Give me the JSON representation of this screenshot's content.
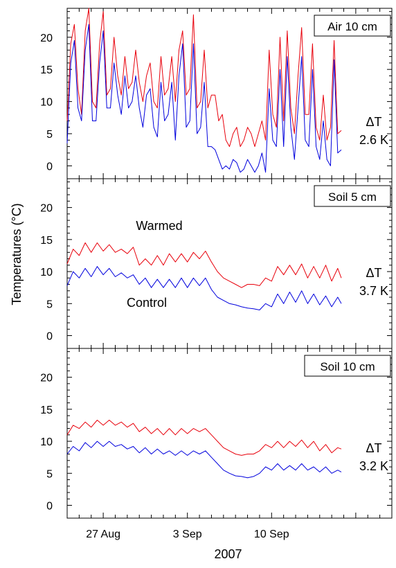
{
  "chart_data": [
    {
      "type": "line",
      "label": "Air 10 cm",
      "delta_label": "ΔT",
      "delta_value": "2.6 K",
      "ylim": [
        -2,
        24.5
      ],
      "yticks": [
        0,
        5,
        10,
        15,
        20
      ],
      "series": [
        {
          "key": "warmed",
          "color": "#e8000b",
          "x": [
            0,
            0.3,
            0.6,
            0.9,
            1.2,
            1.5,
            1.8,
            2.1,
            2.4,
            2.7,
            3.0,
            3.3,
            3.6,
            3.9,
            4.2,
            4.5,
            4.8,
            5.1,
            5.4,
            5.7,
            6.0,
            6.3,
            6.6,
            6.9,
            7.2,
            7.5,
            7.8,
            8.1,
            8.4,
            8.7,
            9.0,
            9.3,
            9.6,
            9.9,
            10.2,
            10.5,
            10.8,
            11.1,
            11.4,
            11.7,
            12.0,
            12.3,
            12.6,
            12.9,
            13.2,
            13.5,
            13.8,
            14.1,
            14.4,
            14.7,
            15.0,
            15.3,
            15.6,
            15.9,
            16.2,
            16.5,
            16.8,
            17.1,
            17.4,
            17.7,
            18.0,
            18.3,
            18.6,
            18.9,
            19.2,
            19.5,
            19.8,
            20.1,
            20.4,
            20.7,
            21.0,
            21.3,
            21.6,
            21.9,
            22.2,
            22.5,
            22.8
          ],
          "y": [
            7,
            19,
            22,
            12,
            8,
            21,
            24.5,
            10,
            9,
            19,
            24,
            11,
            12,
            20,
            14,
            11,
            17,
            12,
            13,
            18,
            13,
            10,
            14,
            16,
            10,
            9,
            17,
            11,
            12,
            17,
            10,
            18,
            21,
            11,
            12,
            23.5,
            9,
            10,
            18,
            9,
            11,
            11,
            7,
            8,
            4,
            3,
            5,
            6,
            3,
            4,
            6,
            5,
            3,
            5,
            7,
            4,
            18,
            8,
            6,
            20,
            7,
            21,
            9,
            5,
            14,
            21.5,
            8,
            8,
            19,
            6,
            4,
            11,
            4,
            6,
            19.5,
            5,
            5.5
          ]
        },
        {
          "key": "control",
          "color": "#0000dd",
          "x": [
            0,
            0.3,
            0.6,
            0.9,
            1.2,
            1.5,
            1.8,
            2.1,
            2.4,
            2.7,
            3.0,
            3.3,
            3.6,
            3.9,
            4.2,
            4.5,
            4.8,
            5.1,
            5.4,
            5.7,
            6.0,
            6.3,
            6.6,
            6.9,
            7.2,
            7.5,
            7.8,
            8.1,
            8.4,
            8.7,
            9.0,
            9.3,
            9.6,
            9.9,
            10.2,
            10.5,
            10.8,
            11.1,
            11.4,
            11.7,
            12.0,
            12.3,
            12.6,
            12.9,
            13.2,
            13.5,
            13.8,
            14.1,
            14.4,
            14.7,
            15.0,
            15.3,
            15.6,
            15.9,
            16.2,
            16.5,
            16.8,
            17.1,
            17.4,
            17.7,
            18.0,
            18.3,
            18.6,
            18.9,
            19.2,
            19.5,
            19.8,
            20.1,
            20.4,
            20.7,
            21.0,
            21.3,
            21.6,
            21.9,
            22.2,
            22.5,
            22.8
          ],
          "y": [
            3.5,
            16,
            19.5,
            9,
            7,
            18,
            22,
            7,
            7,
            16,
            21,
            9,
            9,
            16,
            11,
            8,
            14,
            9,
            10,
            14,
            9,
            6,
            11,
            12,
            6,
            4.5,
            13,
            7,
            8,
            13,
            4,
            14,
            19,
            6,
            7,
            19,
            5,
            6,
            13,
            3,
            3,
            2.5,
            1,
            -0.5,
            0,
            -0.5,
            1,
            0.5,
            -1,
            -0.5,
            1,
            0,
            -1,
            0,
            2,
            -1,
            12,
            4,
            3,
            15,
            3,
            17,
            6,
            1,
            9,
            17,
            4,
            3,
            15,
            3,
            1,
            7,
            1,
            0,
            16.5,
            2,
            2.5
          ]
        }
      ]
    },
    {
      "type": "line",
      "label": "Soil 5 cm",
      "delta_label": "ΔT",
      "delta_value": "3.7 K",
      "warmed_label": "Warmed",
      "control_label": "Control",
      "ylim": [
        -2,
        24.5
      ],
      "yticks": [
        0,
        5,
        10,
        15,
        20
      ],
      "series": [
        {
          "key": "warmed",
          "color": "#e8000b",
          "x": [
            0,
            0.5,
            1,
            1.5,
            2,
            2.5,
            3,
            3.5,
            4,
            4.5,
            5,
            5.5,
            6,
            6.5,
            7,
            7.5,
            8,
            8.5,
            9,
            9.5,
            10,
            10.5,
            11,
            11.5,
            12,
            12.5,
            13,
            13.5,
            14,
            14.5,
            15,
            15.5,
            16,
            16.5,
            17,
            17.5,
            18,
            18.5,
            19,
            19.5,
            20,
            20.5,
            21,
            21.5,
            22,
            22.5,
            22.8
          ],
          "y": [
            11.2,
            13.5,
            12.5,
            14.5,
            13,
            14.5,
            13.2,
            14.2,
            13,
            13.5,
            12.8,
            13.8,
            11,
            12,
            11,
            12.5,
            11,
            12.8,
            11.5,
            12.8,
            11.5,
            13,
            12,
            13.2,
            11.5,
            10,
            9,
            8.5,
            8,
            7.5,
            8,
            8,
            7.8,
            9,
            8.5,
            10.8,
            9.5,
            11,
            9.5,
            11.2,
            9,
            10.8,
            9,
            11,
            8.5,
            10.5,
            9
          ]
        },
        {
          "key": "control",
          "color": "#0000dd",
          "x": [
            0,
            0.5,
            1,
            1.5,
            2,
            2.5,
            3,
            3.5,
            4,
            4.5,
            5,
            5.5,
            6,
            6.5,
            7,
            7.5,
            8,
            8.5,
            9,
            9.5,
            10,
            10.5,
            11,
            11.5,
            12,
            12.5,
            13,
            13.5,
            14,
            14.5,
            15,
            15.5,
            16,
            16.5,
            17,
            17.5,
            18,
            18.5,
            19,
            19.5,
            20,
            20.5,
            21,
            21.5,
            22,
            22.5,
            22.8
          ],
          "y": [
            7.8,
            10,
            9,
            10.5,
            9.2,
            10.8,
            9.5,
            10.5,
            9.2,
            9.8,
            9,
            9.5,
            8,
            9,
            7.5,
            8.8,
            7.5,
            8.8,
            7.5,
            9,
            7.5,
            9,
            7.8,
            9,
            7.2,
            6,
            5.5,
            5,
            4.8,
            4.5,
            4.3,
            4.2,
            4,
            5,
            4.5,
            6.5,
            5,
            6.8,
            5.2,
            7,
            5,
            6.5,
            4.8,
            6.2,
            4.5,
            6,
            5
          ]
        }
      ]
    },
    {
      "type": "line",
      "label": "Soil 10 cm",
      "delta_label": "ΔT",
      "delta_value": "3.2 K",
      "ylim": [
        -2,
        24.5
      ],
      "yticks": [
        0,
        5,
        10,
        15,
        20
      ],
      "xticks": [
        {
          "pos": 3,
          "label": "27 Aug"
        },
        {
          "pos": 10,
          "label": "3 Sep"
        },
        {
          "pos": 17,
          "label": "10 Sep"
        }
      ],
      "xlim": [
        0,
        27
      ],
      "xlabel": "2007",
      "series": [
        {
          "key": "warmed",
          "color": "#e8000b",
          "x": [
            0,
            0.5,
            1,
            1.5,
            2,
            2.5,
            3,
            3.5,
            4,
            4.5,
            5,
            5.5,
            6,
            6.5,
            7,
            7.5,
            8,
            8.5,
            9,
            9.5,
            10,
            10.5,
            11,
            11.5,
            12,
            12.5,
            13,
            13.5,
            14,
            14.5,
            15,
            15.5,
            16,
            16.5,
            17,
            17.5,
            18,
            18.5,
            19,
            19.5,
            20,
            20.5,
            21,
            21.5,
            22,
            22.5,
            22.8
          ],
          "y": [
            11,
            12.5,
            12,
            13,
            12.2,
            13.3,
            12.5,
            13.3,
            12.5,
            13,
            12.2,
            12.8,
            11.5,
            12.2,
            11.2,
            12,
            11,
            12,
            11,
            12,
            11.2,
            12,
            11.5,
            12,
            11,
            10,
            9,
            8.5,
            8,
            7.8,
            8,
            8,
            8.5,
            9.5,
            9,
            10,
            9,
            10,
            9.2,
            10.2,
            9,
            10,
            8.5,
            9.5,
            8.2,
            9,
            8.8
          ]
        },
        {
          "key": "control",
          "color": "#0000dd",
          "x": [
            0,
            0.5,
            1,
            1.5,
            2,
            2.5,
            3,
            3.5,
            4,
            4.5,
            5,
            5.5,
            6,
            6.5,
            7,
            7.5,
            8,
            8.5,
            9,
            9.5,
            10,
            10.5,
            11,
            11.5,
            12,
            12.5,
            13,
            13.5,
            14,
            14.5,
            15,
            15.5,
            16,
            16.5,
            17,
            17.5,
            18,
            18.5,
            19,
            19.5,
            20,
            20.5,
            21,
            21.5,
            22,
            22.5,
            22.8
          ],
          "y": [
            8,
            9.2,
            8.5,
            9.8,
            9,
            10,
            9.2,
            10,
            9.2,
            9.5,
            8.8,
            9.2,
            8.2,
            9,
            8,
            8.8,
            8,
            8.5,
            7.8,
            8.5,
            7.8,
            8.5,
            8,
            8.5,
            7.5,
            6.5,
            5.5,
            5,
            4.6,
            4.5,
            4.3,
            4.5,
            5,
            6,
            5.5,
            6.5,
            5.5,
            6.2,
            5.5,
            6.5,
            5.5,
            6,
            5.2,
            6,
            5,
            5.5,
            5.2
          ]
        }
      ]
    }
  ],
  "ylabel": "Temperatures (°C)"
}
